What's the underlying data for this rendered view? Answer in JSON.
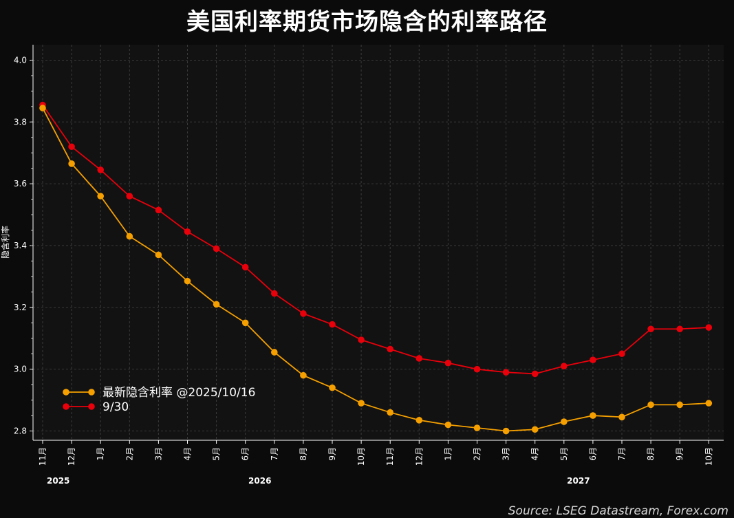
{
  "chart_data": {
    "type": "line",
    "title": "美国利率期货市场隐含的利率路径",
    "ylabel": "隐含利率",
    "xlabel": "",
    "ylim": [
      2.77,
      4.05
    ],
    "yticks": [
      "2.8",
      "3.0",
      "3.2",
      "3.4",
      "3.6",
      "3.8",
      "4.0"
    ],
    "ytick_values": [
      2.8,
      3.0,
      3.2,
      3.4,
      3.6,
      3.8,
      4.0
    ],
    "grid": true,
    "legend_position": "lower-left",
    "categories": [
      "11月",
      "12月",
      "1月",
      "2月",
      "3月",
      "4月",
      "5月",
      "6月",
      "7月",
      "8月",
      "9月",
      "10月",
      "11月",
      "12月",
      "1月",
      "2月",
      "3月",
      "4月",
      "5月",
      "6月",
      "7月",
      "8月",
      "9月",
      "10月"
    ],
    "year_labels": [
      {
        "label": "2025",
        "index": 0
      },
      {
        "label": "2026",
        "index": 7.5
      },
      {
        "label": "2027",
        "index": 18.5
      }
    ],
    "series": [
      {
        "name": "最新隐含利率 @2025/10/16",
        "color": "#f5a000",
        "values": [
          3.845,
          3.665,
          3.56,
          3.43,
          3.37,
          3.285,
          3.21,
          3.15,
          3.055,
          2.98,
          2.94,
          2.89,
          2.86,
          2.835,
          2.82,
          2.81,
          2.8,
          2.805,
          2.83,
          2.85,
          2.845,
          2.885,
          2.885,
          2.89
        ]
      },
      {
        "name": "9/30",
        "color": "#e8000b",
        "values": [
          3.855,
          3.72,
          3.645,
          3.56,
          3.515,
          3.445,
          3.39,
          3.33,
          3.245,
          3.18,
          3.145,
          3.095,
          3.065,
          3.035,
          3.02,
          3.0,
          2.99,
          2.985,
          3.01,
          3.03,
          3.05,
          3.13,
          3.13,
          3.135
        ]
      }
    ]
  },
  "source": "Source: LSEG Datastream, Forex.com"
}
